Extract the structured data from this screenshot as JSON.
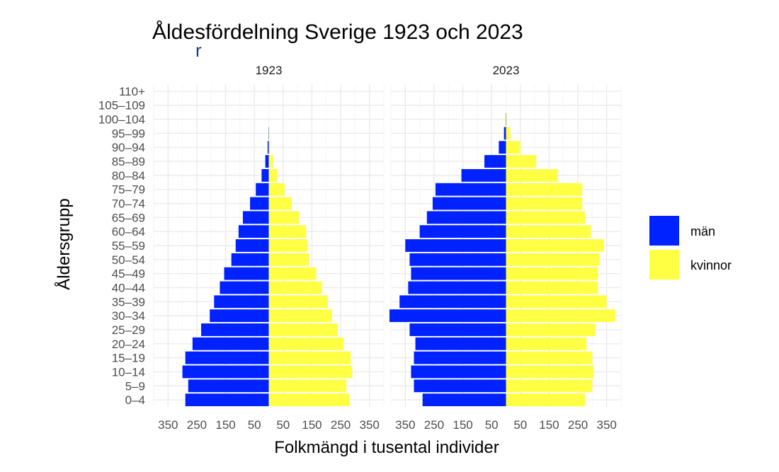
{
  "chart_data": {
    "type": "bar",
    "subtype": "population-pyramid",
    "title": "Åldesfördelning Sverige 1923 och 2023",
    "subtitle": "r",
    "xlabel": "Folkmängd i tusental individer",
    "ylabel": "Åldersgrupp",
    "categories": [
      "0–4",
      "5–9",
      "10–14",
      "15–19",
      "20–24",
      "25–29",
      "30–34",
      "35–39",
      "40–44",
      "45–49",
      "50–54",
      "55–59",
      "60–64",
      "65–69",
      "70–74",
      "75–79",
      "80–84",
      "85–89",
      "90–94",
      "95–99",
      "100–104",
      "105–109",
      "110+"
    ],
    "xlim": [
      -400,
      400
    ],
    "x_ticks": [
      -350,
      -250,
      -150,
      -50,
      50,
      150,
      250,
      350
    ],
    "x_tick_labels": [
      "350",
      "250",
      "150",
      "50",
      "50",
      "150",
      "250",
      "350"
    ],
    "grid": true,
    "legend": {
      "position": "right",
      "items": [
        {
          "label": "män",
          "color": "#0022ff"
        },
        {
          "label": "kvinnor",
          "color": "#ffff44"
        }
      ]
    },
    "panels": [
      {
        "label": "1923",
        "series": [
          {
            "name": "män",
            "values": [
              -290,
              -280,
              -300,
              -290,
              -265,
              -235,
              -205,
              -190,
              -170,
              -155,
              -130,
              -115,
              -105,
              -90,
              -65,
              -45,
              -25,
              -12,
              -4,
              -1,
              0,
              0,
              0
            ]
          },
          {
            "name": "kvinnor",
            "values": [
              280,
              270,
              290,
              285,
              260,
              240,
              220,
              205,
              185,
              165,
              140,
              135,
              130,
              105,
              80,
              55,
              30,
              15,
              5,
              1,
              0,
              0,
              0
            ]
          }
        ]
      },
      {
        "label": "2023",
        "series": [
          {
            "name": "män",
            "values": [
              -290,
              -320,
              -330,
              -320,
              -315,
              -335,
              -405,
              -370,
              -340,
              -330,
              -335,
              -350,
              -300,
              -275,
              -255,
              -245,
              -155,
              -75,
              -25,
              -7,
              -1,
              0,
              0
            ]
          },
          {
            "name": "kvinnor",
            "values": [
              275,
              300,
              305,
              300,
              280,
              310,
              380,
              350,
              320,
              320,
              325,
              340,
              295,
              275,
              265,
              265,
              180,
              105,
              50,
              15,
              2,
              0,
              0
            ]
          }
        ]
      }
    ]
  },
  "colors": {
    "men": "#0022ff",
    "women": "#ffff44",
    "subtitle": "#1f3a8a"
  }
}
